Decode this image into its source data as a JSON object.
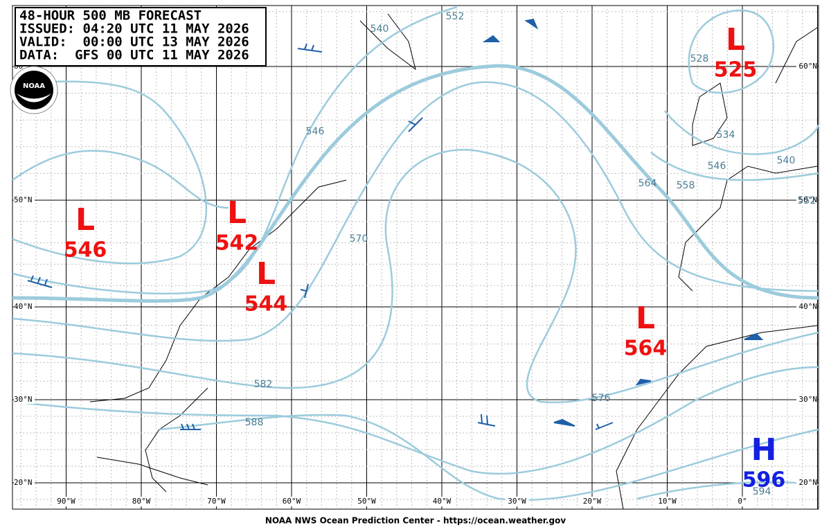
{
  "header": {
    "lines": [
      "48-HOUR 500 MB FORECAST",
      "ISSUED: 04:20 UTC 11 MAY 2026",
      "VALID:  00:00 UTC 13 MAY 2026",
      "DATA:  GFS 00 UTC 11 MAY 2026"
    ]
  },
  "logo": "NOAA",
  "lat_labels": [
    "60°N",
    "50°N",
    "40°N",
    "30°N",
    "20°N"
  ],
  "lon_labels": [
    "90°W",
    "80°W",
    "70°W",
    "60°W",
    "50°W",
    "40°W",
    "30°W",
    "20°W",
    "10°W",
    "0°"
  ],
  "centers": [
    {
      "letter": "L",
      "value": "525"
    },
    {
      "letter": "L",
      "value": "546"
    },
    {
      "letter": "L",
      "value": "542"
    },
    {
      "letter": "L",
      "value": "544"
    },
    {
      "letter": "L",
      "value": "564"
    },
    {
      "letter": "H",
      "value": "596"
    }
  ],
  "contour_labels": [
    "540",
    "552",
    "546",
    "570",
    "564",
    "558",
    "534",
    "546",
    "540",
    "552",
    "582",
    "576",
    "588",
    "594",
    "528"
  ],
  "footer": "NOAA NWS Ocean Prediction Center - https://ocean.weather.gov"
}
